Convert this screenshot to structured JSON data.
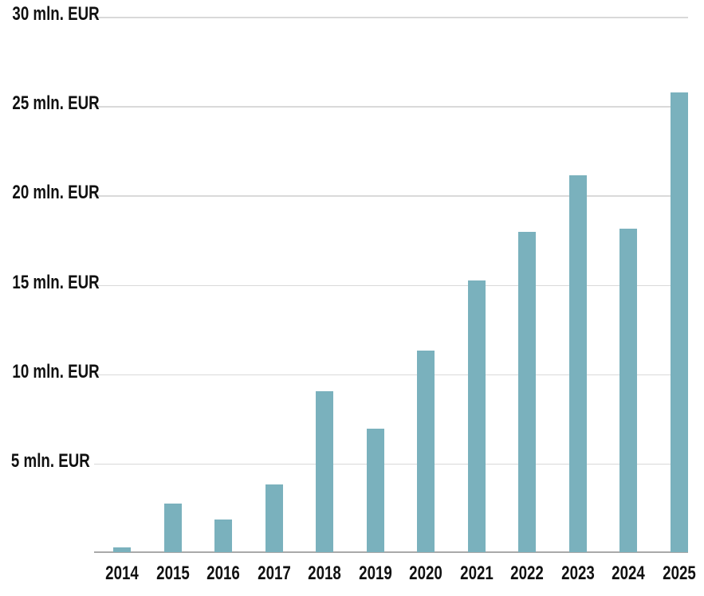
{
  "chart_data": {
    "type": "bar",
    "title": "",
    "xlabel": "",
    "ylabel": "",
    "unit": "mln. EUR",
    "categories": [
      "2014",
      "2015",
      "2016",
      "2017",
      "2018",
      "2019",
      "2020",
      "2021",
      "2022",
      "2023",
      "2024",
      "2025"
    ],
    "values": [
      0.25,
      2.7,
      1.85,
      3.8,
      9.0,
      6.9,
      11.3,
      15.2,
      17.9,
      21.1,
      18.1,
      25.7
    ],
    "ylim": [
      0,
      30
    ],
    "y_ticks": [
      {
        "value": 30,
        "label": "30 mln. EUR"
      },
      {
        "value": 25,
        "label": "25 mln. EUR"
      },
      {
        "value": 20,
        "label": "20 mln. EUR"
      },
      {
        "value": 15,
        "label": "15 mln. EUR"
      },
      {
        "value": 10,
        "label": "10 mln. EUR"
      },
      {
        "value": 5,
        "label": "5 mln. EUR"
      }
    ],
    "grid": true,
    "legend": false,
    "colors": {
      "bar": "#7ab1bd",
      "gridline": "#d9d9d9",
      "axis_line": "#a9a9a9",
      "text": "#111111",
      "background": "#ffffff"
    }
  }
}
